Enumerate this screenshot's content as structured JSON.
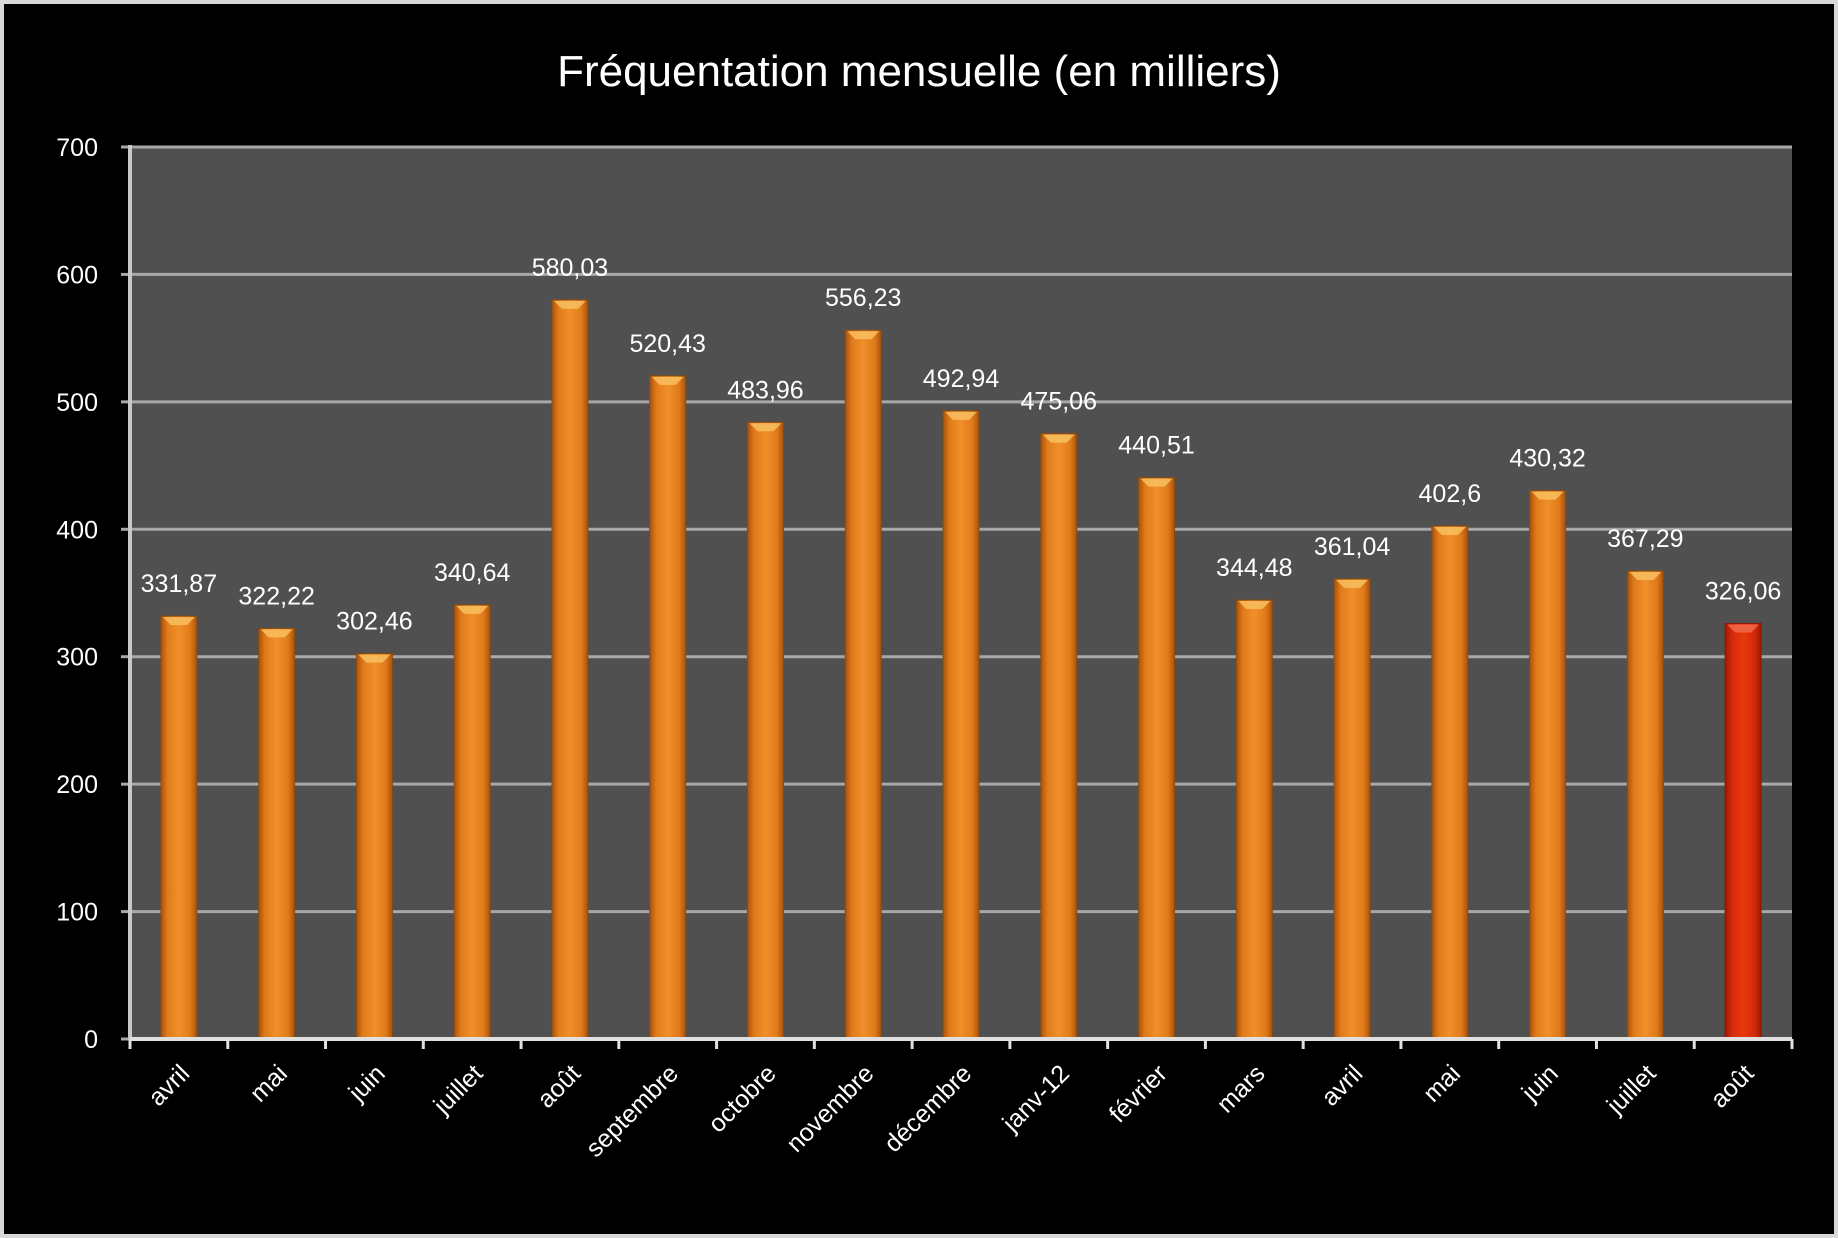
{
  "chart_data": {
    "type": "bar",
    "title": "Fréquentation mensuelle (en milliers)",
    "xlabel": "",
    "ylabel": "",
    "ylim": [
      0,
      700
    ],
    "yticks": [
      0,
      100,
      200,
      300,
      400,
      500,
      600,
      700
    ],
    "ytick_labels": [
      "0",
      "100",
      "200",
      "300",
      "400",
      "500",
      "600",
      "700"
    ],
    "grid": true,
    "legend": "none",
    "categories": [
      "avril",
      "mai",
      "juin",
      "juillet",
      "août",
      "septembre",
      "octobre",
      "novembre",
      "décembre",
      "janv-12",
      "février",
      "mars",
      "avril",
      "mai",
      "juin",
      "juillet",
      "août"
    ],
    "values": [
      331.87,
      322.22,
      302.46,
      340.64,
      580.03,
      520.43,
      483.96,
      556.23,
      492.94,
      475.06,
      440.51,
      344.48,
      361.04,
      402.6,
      430.32,
      367.29,
      326.06
    ],
    "value_labels": [
      "331,87",
      "322,22",
      "302,46",
      "340,64",
      "580,03",
      "520,43",
      "483,96",
      "556,23",
      "492,94",
      "475,06",
      "440,51",
      "344,48",
      "361,04",
      "402,6",
      "430,32",
      "367,29",
      "326,06"
    ],
    "highlight_index": 16,
    "colors": {
      "background": "#000000",
      "plot_area": "#505050",
      "gridline": "#a8a8a8",
      "bar": "#e6801e",
      "bar_highlight": "#d42a08",
      "text": "#ffffff"
    }
  }
}
